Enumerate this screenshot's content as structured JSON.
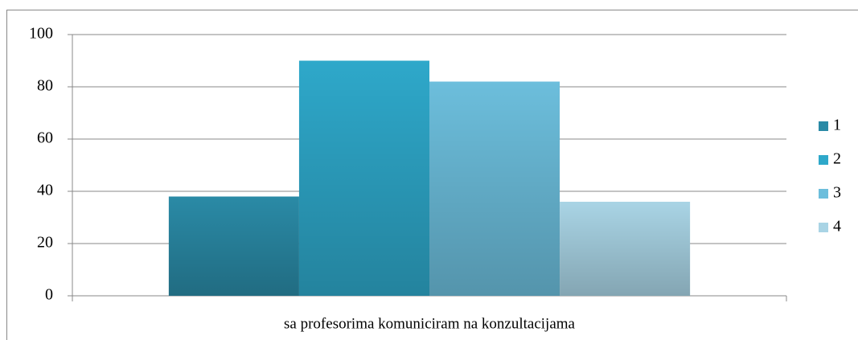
{
  "chart_data": {
    "type": "bar",
    "categories": [
      "sa profesorima komuniciram na konzultacijama"
    ],
    "series": [
      {
        "name": "1",
        "color": "#2a8aa6",
        "values": [
          38
        ]
      },
      {
        "name": "2",
        "color": "#2ea8ca",
        "values": [
          90
        ]
      },
      {
        "name": "3",
        "color": "#6cbedc",
        "values": [
          82
        ]
      },
      {
        "name": "4",
        "color": "#a9d4e5",
        "values": [
          36
        ]
      }
    ],
    "ylim": [
      0,
      100
    ],
    "yticks": [
      0,
      20,
      40,
      60,
      80,
      100
    ],
    "grid": true,
    "legend": "right"
  }
}
